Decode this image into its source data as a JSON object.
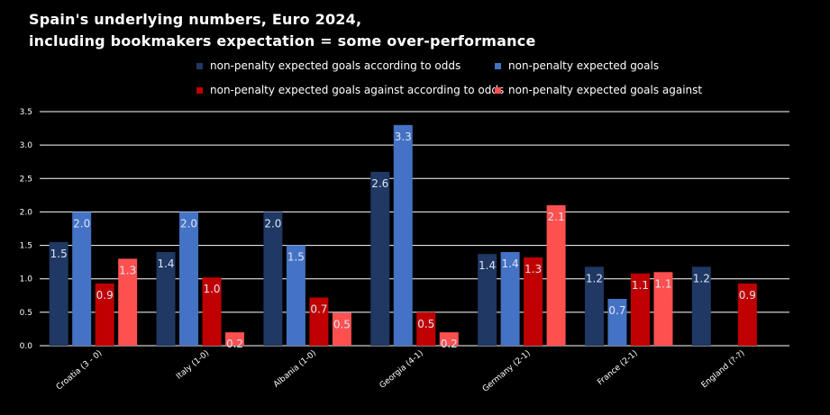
{
  "header": {
    "title_line1": "Spain's underlying numbers, Euro 2024,",
    "title_line2": "including bookmakers expectation = some over-performance"
  },
  "chart_data": {
    "type": "bar",
    "title": "Spain's underlying numbers, Euro 2024, including bookmakers expectation = some over-performance",
    "categories": [
      "Croatia (3 - 0)",
      "Italy (1-0)",
      "Albania (1-0)",
      "Georgia (4-1)",
      "Germany (2-1)",
      "France (2-1)",
      "England (?-?)"
    ],
    "ylim": [
      0,
      3.5
    ],
    "yticks": [
      "0.0",
      "0.5",
      "1.0",
      "1.5",
      "2.0",
      "2.5",
      "3.0",
      "3.5"
    ],
    "grid": true,
    "legend_position": "top",
    "series": [
      {
        "name": "non-penalty expected goals according to odds",
        "color": "#1f3864",
        "values": [
          1.55,
          1.4,
          2.0,
          2.6,
          1.37,
          1.18,
          1.18
        ],
        "labels": [
          "1.5",
          "1.4",
          "2.0",
          "2.6",
          "1.4",
          "1.2",
          "1.2"
        ]
      },
      {
        "name": "non-penalty expected goals",
        "color": "#4472c4",
        "values": [
          2.0,
          2.0,
          1.5,
          3.3,
          1.4,
          0.7,
          null
        ],
        "labels": [
          "2.0",
          "2.0",
          "1.5",
          "3.3",
          "1.4",
          "0.7",
          ""
        ]
      },
      {
        "name": "non-penalty expected goals against according to odds",
        "color": "#c00000",
        "values": [
          0.93,
          1.02,
          0.72,
          0.5,
          1.32,
          1.08,
          0.93
        ],
        "labels": [
          "0.9",
          "1.0",
          "0.7",
          "0.5",
          "1.3",
          "1.1",
          "0.9"
        ]
      },
      {
        "name": "non-penalty expected goals against",
        "color": "#ff5050",
        "values": [
          1.3,
          0.2,
          0.49,
          0.2,
          2.1,
          1.1,
          null
        ],
        "labels": [
          "1.3",
          "0.2",
          "0.5",
          "0.2",
          "2.1",
          "1.1",
          ""
        ]
      }
    ]
  }
}
